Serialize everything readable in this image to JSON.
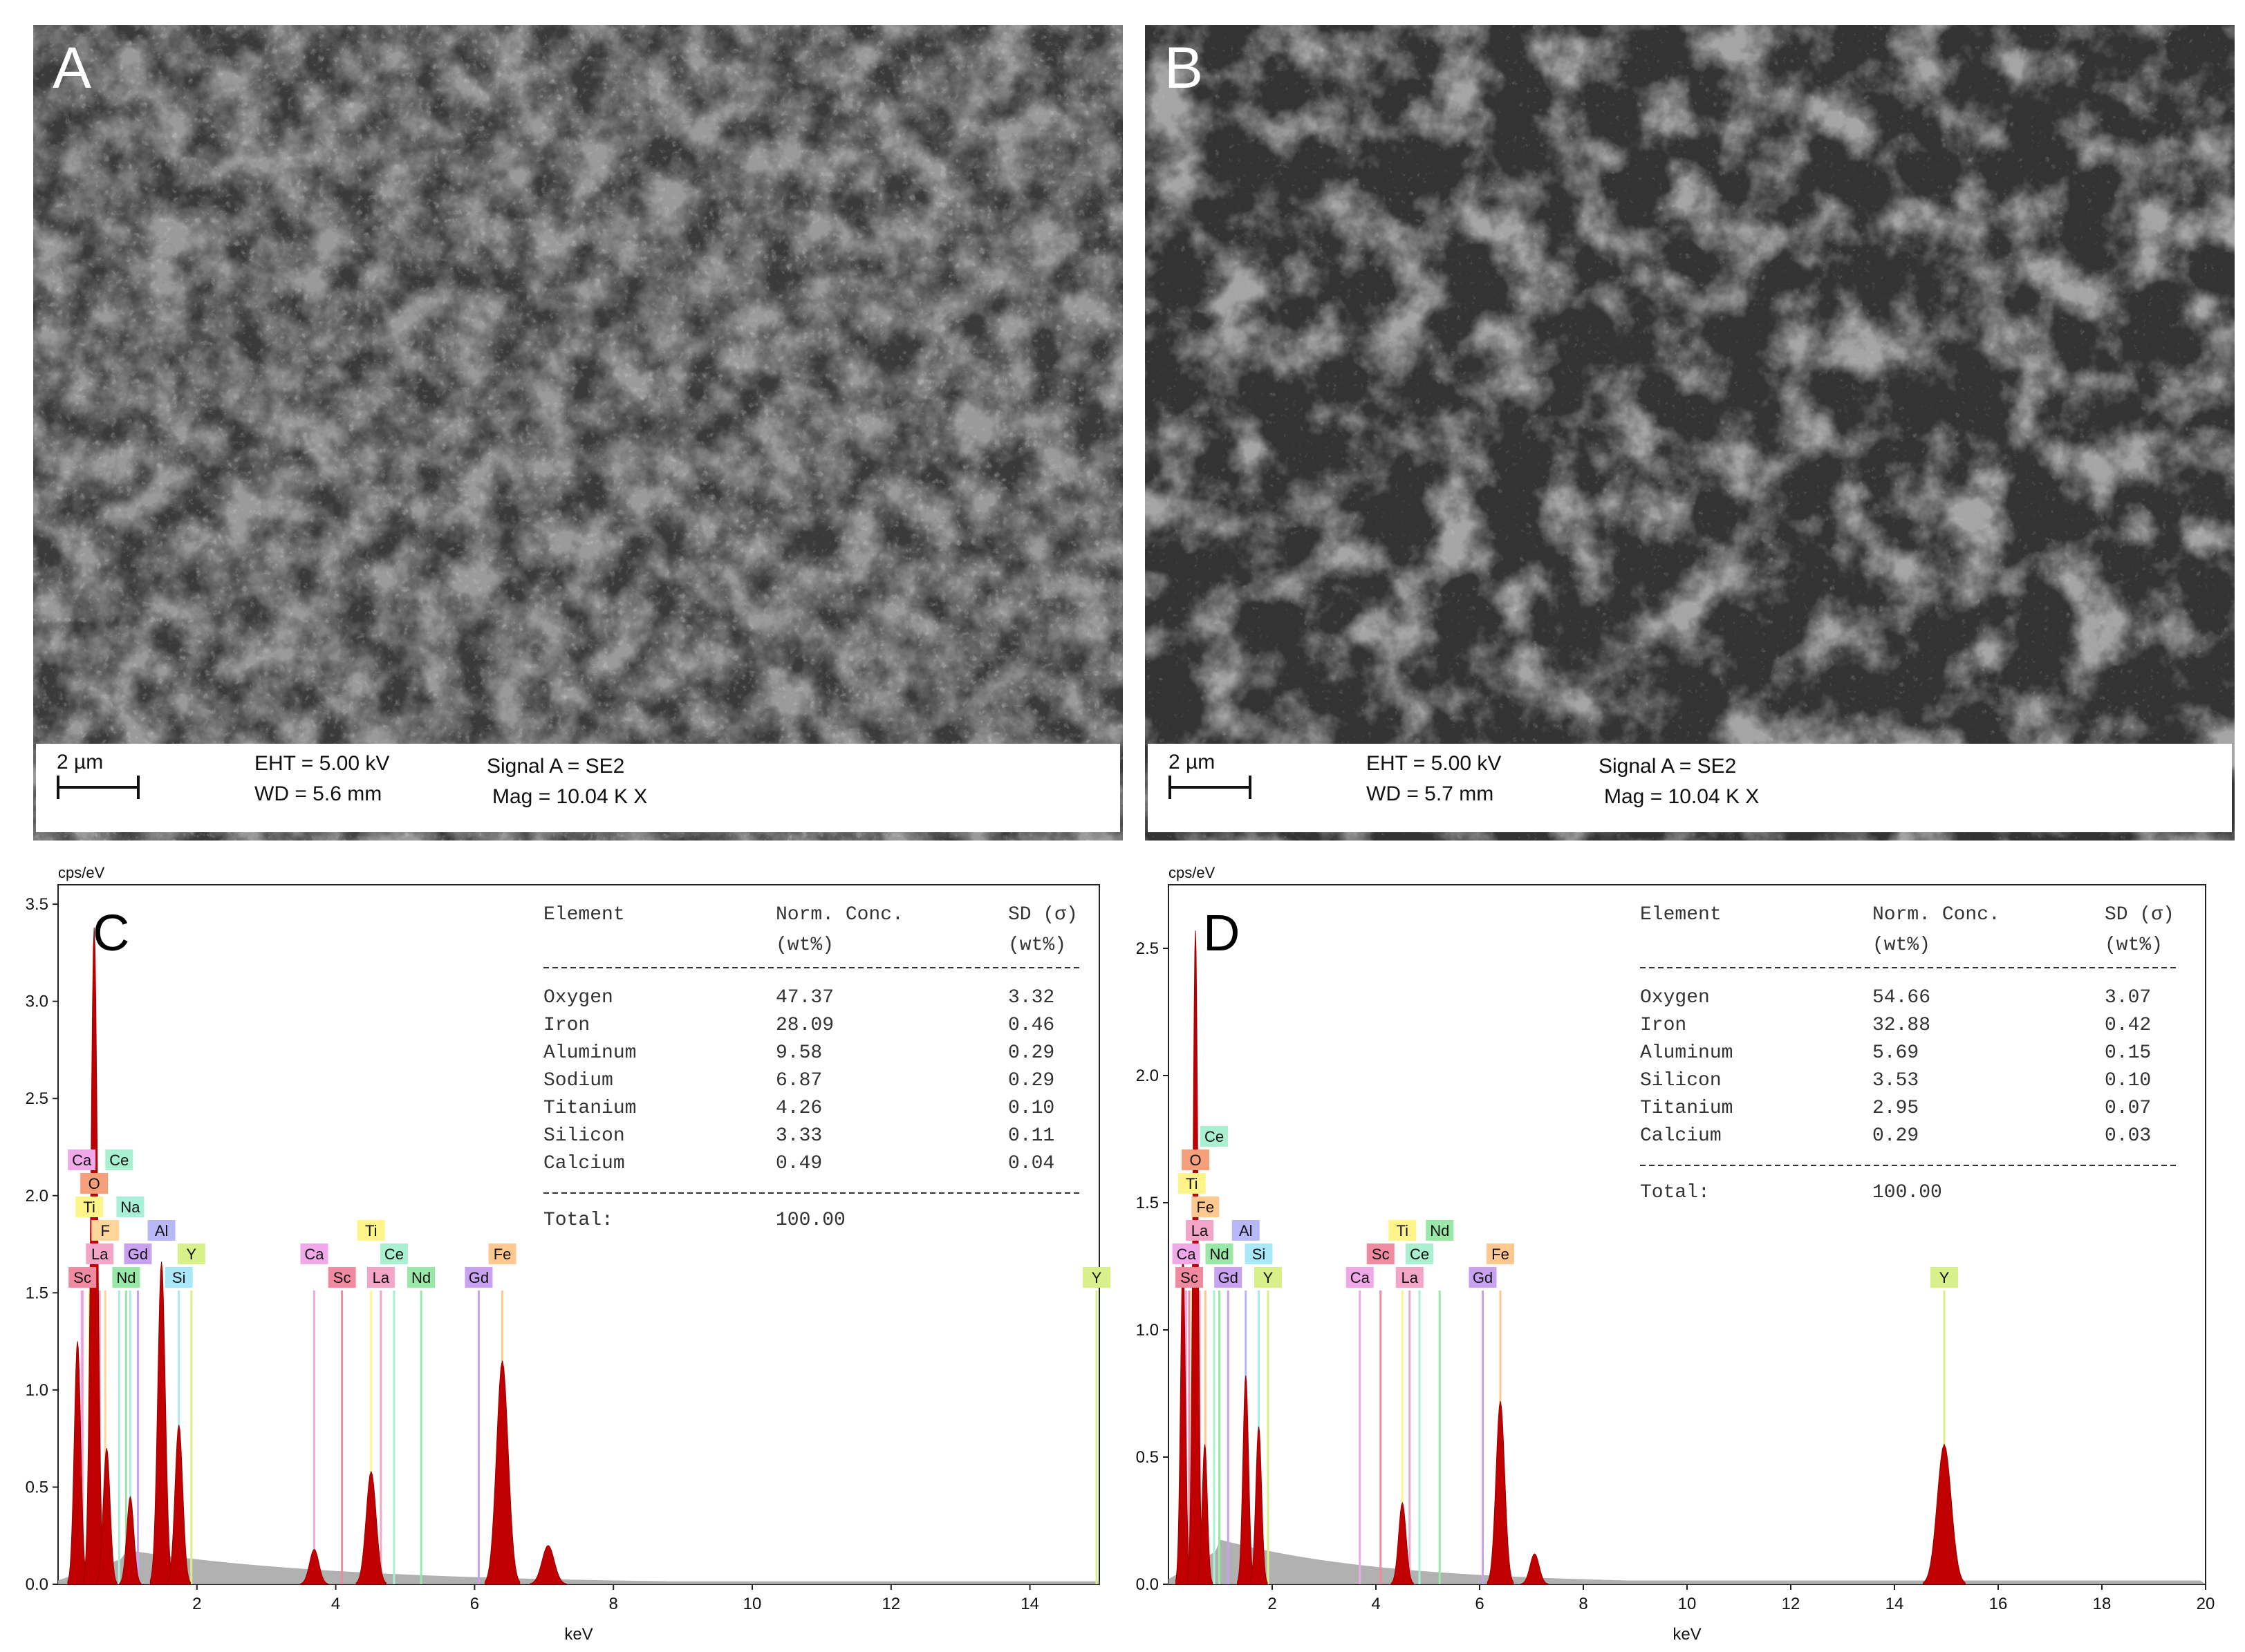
{
  "panels": {
    "A": {
      "letter": "A",
      "scale_label": "2 µm",
      "eht": "EHT =  5.00 kV",
      "wd": "WD =  5.6 mm",
      "signal": "Signal A = SE2",
      "mag": "Mag =   10.04 K X"
    },
    "B": {
      "letter": "B",
      "scale_label": "2 µm",
      "eht": "EHT =  5.00 kV",
      "wd": "WD =  5.7 mm",
      "signal": "Signal A = SE2",
      "mag": "Mag =   10.04 K X"
    }
  },
  "chart_data": [
    {
      "type": "line",
      "panel": "C",
      "ylabel": "cps/eV",
      "xlabel": "keV",
      "xlim": [
        0,
        15
      ],
      "ylim": [
        0,
        3.6
      ],
      "xticks": [
        2,
        4,
        6,
        8,
        10,
        12,
        14
      ],
      "yticks": [
        "0.0",
        "0.5",
        "1.0",
        "1.5",
        "2.0",
        "2.5",
        "3.0",
        "3.5"
      ],
      "yvalues": [
        0.0,
        0.5,
        1.0,
        1.5,
        2.0,
        2.5,
        3.0,
        3.5
      ],
      "peaks": [
        [
          0.28,
          1.25
        ],
        [
          0.52,
          3.38
        ],
        [
          0.7,
          0.7
        ],
        [
          1.04,
          0.45
        ],
        [
          1.49,
          1.66
        ],
        [
          1.74,
          0.82
        ],
        [
          3.69,
          0.18
        ],
        [
          4.51,
          0.58
        ],
        [
          6.4,
          1.15
        ],
        [
          7.06,
          0.2
        ]
      ],
      "element_markers": [
        {
          "el": "Sc",
          "x": 0.35,
          "color": "#f08aa0"
        },
        {
          "el": "La",
          "x": 0.6,
          "color": "#f4a6c8"
        },
        {
          "el": "F",
          "x": 0.68,
          "color": "#ffd59a"
        },
        {
          "el": "Nd",
          "x": 0.98,
          "color": "#9ae8a8"
        },
        {
          "el": "Ti",
          "x": 0.45,
          "color": "#fff48a"
        },
        {
          "el": "Gd",
          "x": 1.15,
          "color": "#c8a2f0"
        },
        {
          "el": "Si",
          "x": 1.74,
          "color": "#a8e8f8"
        },
        {
          "el": "O",
          "x": 0.52,
          "color": "#f5a07a"
        },
        {
          "el": "Na",
          "x": 1.04,
          "color": "#a8f0d8"
        },
        {
          "el": "Al",
          "x": 1.49,
          "color": "#b8b8f8"
        },
        {
          "el": "Y",
          "x": 1.92,
          "color": "#d8f08a"
        },
        {
          "el": "Ca",
          "x": 0.34,
          "color": "#f0a8e8"
        },
        {
          "el": "Ce",
          "x": 0.88,
          "color": "#a8f0d0"
        },
        {
          "el": "La",
          "x": 4.65,
          "color": "#f4a6c8"
        },
        {
          "el": "Sc",
          "x": 4.09,
          "color": "#f08aa0"
        },
        {
          "el": "Ce",
          "x": 4.84,
          "color": "#a8f0d0"
        },
        {
          "el": "Ca",
          "x": 3.69,
          "color": "#f0a8e8"
        },
        {
          "el": "Ti",
          "x": 4.51,
          "color": "#fff48a"
        },
        {
          "el": "Nd",
          "x": 5.23,
          "color": "#9ae8a8"
        },
        {
          "el": "Gd",
          "x": 6.06,
          "color": "#c8a2f0"
        },
        {
          "el": "Fe",
          "x": 6.4,
          "color": "#ffc890"
        },
        {
          "el": "Y",
          "x": 14.96,
          "color": "#d8f08a"
        }
      ],
      "table": {
        "headers": [
          "Element",
          "Norm. Conc.",
          "SD (σ)"
        ],
        "units": [
          "",
          "(wt%)",
          "(wt%)"
        ],
        "rows": [
          [
            "Oxygen",
            "47.37",
            "3.32"
          ],
          [
            "Iron",
            "28.09",
            "0.46"
          ],
          [
            "Aluminum",
            "9.58",
            "0.29"
          ],
          [
            "Sodium",
            "6.87",
            "0.29"
          ],
          [
            "Titanium",
            "4.26",
            "0.10"
          ],
          [
            "Silicon",
            "3.33",
            "0.11"
          ],
          [
            "Calcium",
            "0.49",
            "0.04"
          ]
        ],
        "total_label": "Total:",
        "total_value": "100.00"
      }
    },
    {
      "type": "line",
      "panel": "D",
      "ylabel": "cps/eV",
      "xlabel": "keV",
      "xlim": [
        0,
        20
      ],
      "ylim": [
        0,
        2.75
      ],
      "xticks": [
        2,
        4,
        6,
        8,
        10,
        12,
        14,
        16,
        18,
        20
      ],
      "yticks": [
        "0.0",
        "0.5",
        "1.0",
        "1.5",
        "2.0",
        "2.5"
      ],
      "yvalues": [
        0.0,
        0.5,
        1.0,
        1.5,
        2.0,
        2.5
      ],
      "peaks": [
        [
          0.28,
          1.3
        ],
        [
          0.52,
          2.57
        ],
        [
          0.7,
          0.55
        ],
        [
          1.49,
          0.82
        ],
        [
          1.74,
          0.62
        ],
        [
          4.51,
          0.32
        ],
        [
          6.4,
          0.72
        ],
        [
          7.06,
          0.12
        ],
        [
          14.96,
          0.55
        ]
      ],
      "element_markers": [
        {
          "el": "Sc",
          "x": 0.4,
          "color": "#f08aa0"
        },
        {
          "el": "Nd",
          "x": 0.98,
          "color": "#9ae8a8"
        },
        {
          "el": "La",
          "x": 0.6,
          "color": "#f4a6c8"
        },
        {
          "el": "Fe",
          "x": 0.71,
          "color": "#ffc890"
        },
        {
          "el": "Ti",
          "x": 0.45,
          "color": "#fff48a"
        },
        {
          "el": "Gd",
          "x": 1.15,
          "color": "#c8a2f0"
        },
        {
          "el": "Si",
          "x": 1.74,
          "color": "#a8e8f8"
        },
        {
          "el": "O",
          "x": 0.52,
          "color": "#f5a07a"
        },
        {
          "el": "Al",
          "x": 1.49,
          "color": "#b8b8f8"
        },
        {
          "el": "Y",
          "x": 1.92,
          "color": "#d8f08a"
        },
        {
          "el": "Ca",
          "x": 0.34,
          "color": "#f0a8e8"
        },
        {
          "el": "Ce",
          "x": 0.88,
          "color": "#a8f0d0"
        },
        {
          "el": "La",
          "x": 4.65,
          "color": "#f4a6c8"
        },
        {
          "el": "Sc",
          "x": 4.09,
          "color": "#f08aa0"
        },
        {
          "el": "Ce",
          "x": 4.84,
          "color": "#a8f0d0"
        },
        {
          "el": "Ca",
          "x": 3.69,
          "color": "#f0a8e8"
        },
        {
          "el": "Ti",
          "x": 4.51,
          "color": "#fff48a"
        },
        {
          "el": "Nd",
          "x": 5.23,
          "color": "#9ae8a8"
        },
        {
          "el": "Gd",
          "x": 6.06,
          "color": "#c8a2f0"
        },
        {
          "el": "Fe",
          "x": 6.4,
          "color": "#ffc890"
        },
        {
          "el": "Y",
          "x": 14.96,
          "color": "#d8f08a"
        }
      ],
      "table": {
        "headers": [
          "Element",
          "Norm. Conc.",
          "SD (σ)"
        ],
        "units": [
          "",
          "(wt%)",
          "(wt%)"
        ],
        "rows": [
          [
            "Oxygen",
            "54.66",
            "3.07"
          ],
          [
            "Iron",
            "32.88",
            "0.42"
          ],
          [
            "Aluminum",
            "5.69",
            "0.15"
          ],
          [
            "Silicon",
            "3.53",
            "0.10"
          ],
          [
            "Titanium",
            "2.95",
            "0.07"
          ],
          [
            "Calcium",
            "0.29",
            "0.03"
          ]
        ],
        "total_label": "Total:",
        "total_value": "100.00"
      }
    }
  ],
  "colors": {
    "spectrum_fill": "#c00000",
    "background_fill": "#a8a8a8",
    "sem_dark": "#2a2a2a",
    "sem_light": "#cfcfcf"
  }
}
